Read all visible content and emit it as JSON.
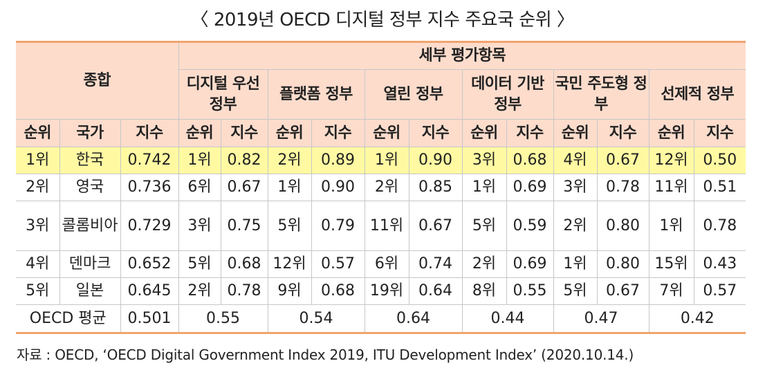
{
  "title": "〈 2019년 OECD 디지털 정부 지수 주요국 순위 〉",
  "header": {
    "overall": "종합",
    "detail": "세부 평가항목",
    "categories": [
      "디지털 우선 정부",
      "플랫폼 정부",
      "열린 정부",
      "데이터 기반 정부",
      "국민 주도형 정부",
      "선제적 정부"
    ],
    "rank": "순위",
    "country": "국가",
    "index": "지수"
  },
  "rows": [
    {
      "rank": "1위",
      "country": "한국",
      "index": "0.742",
      "cells": [
        "1위",
        "0.82",
        "2위",
        "0.89",
        "1위",
        "0.90",
        "3위",
        "0.68",
        "4위",
        "0.67",
        "12위",
        "0.50"
      ],
      "highlight": true
    },
    {
      "rank": "2위",
      "country": "영국",
      "index": "0.736",
      "cells": [
        "6위",
        "0.67",
        "1위",
        "0.90",
        "2위",
        "0.85",
        "1위",
        "0.69",
        "3위",
        "0.78",
        "11위",
        "0.51"
      ]
    },
    {
      "rank": "3위",
      "country": "콜롬비아",
      "index": "0.729",
      "cells": [
        "3위",
        "0.75",
        "5위",
        "0.79",
        "11위",
        "0.67",
        "5위",
        "0.59",
        "2위",
        "0.80",
        "1위",
        "0.78"
      ]
    },
    {
      "rank": "4위",
      "country": "덴마크",
      "index": "0.652",
      "cells": [
        "5위",
        "0.68",
        "12위",
        "0.57",
        "6위",
        "0.74",
        "2위",
        "0.69",
        "1위",
        "0.80",
        "15위",
        "0.43"
      ]
    },
    {
      "rank": "5위",
      "country": "일본",
      "index": "0.645",
      "cells": [
        "2위",
        "0.78",
        "9위",
        "0.68",
        "19위",
        "0.64",
        "8위",
        "0.55",
        "5위",
        "0.67",
        "7위",
        "0.57"
      ]
    }
  ],
  "average": {
    "label": "OECD 평균",
    "index": "0.501",
    "values": [
      "0.55",
      "0.54",
      "0.64",
      "0.44",
      "0.47",
      "0.42"
    ]
  },
  "source": "자료 : OECD, ‘OECD Digital Government Index 2019, ITU Development Index’ (2020.10.14.)"
}
